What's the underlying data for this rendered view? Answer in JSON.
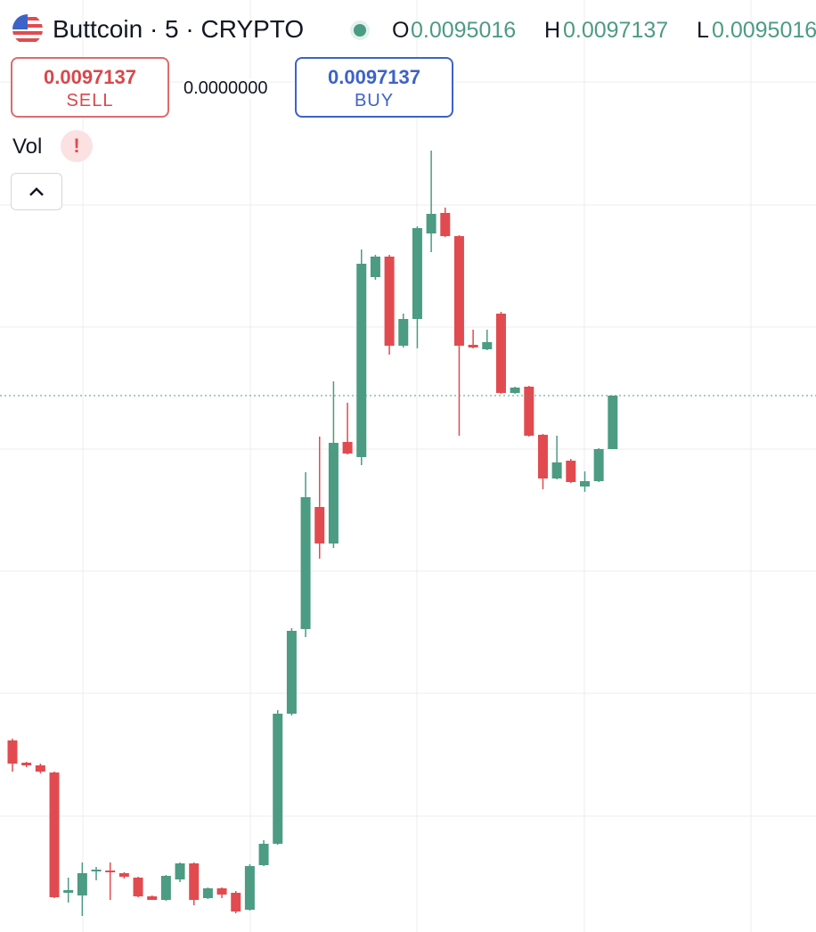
{
  "header": {
    "symbol": "Buttcoin · 5 · CRYPTO",
    "o_label": "O",
    "o_value": 0.0095016,
    "h_label": "H",
    "h_value": 0.0097137,
    "l_label": "L",
    "l_value": 0.0095016
  },
  "trade": {
    "sell_price": 0.0097137,
    "sell_label": "SELL",
    "spread": "0.0000000",
    "buy_price": 0.0097137,
    "buy_label": "BUY"
  },
  "indicator": {
    "name": "Vol",
    "warning": "!"
  },
  "chart_data": {
    "type": "candlestick",
    "ylim": [
      0.0076068,
      0.010753
    ],
    "up_color": "#4c9b83",
    "down_color": "#e14b4f",
    "series": [
      {
        "open": [
          0.0083457,
          0.0082573,
          0.0082467,
          0.0082184,
          0.0077412,
          0.0077306,
          0.007826,
          0.0078295,
          0.0078189,
          0.0078013,
          0.007727,
          0.0077129,
          0.0077942,
          0.0078578,
          0.00772,
          0.0077588,
          0.0077412,
          0.007674,
          0.0078508,
          0.0079356,
          0.0084517,
          0.0087875,
          0.0092718,
          0.0091269,
          0.0095299,
          0.0094698,
          0.0101839,
          0.0102652,
          0.0099117,
          0.0100177,
          0.0103571,
          0.0104384,
          0.0103465,
          0.0099152,
          0.0098975,
          0.0100389,
          0.0097243,
          0.0097491,
          0.0095582,
          0.0093849,
          0.0094556,
          0.0093531,
          0.0093743,
          0.0095016
        ],
        "high": [
          0.0083527,
          0.0082608,
          0.0082537,
          0.0082219,
          0.0078013,
          0.0078614,
          0.0078437,
          0.0078614,
          0.0078225,
          0.0078048,
          0.0077306,
          0.0078119,
          0.0078614,
          0.0078614,
          0.0077624,
          0.0077624,
          0.0077482,
          0.0078543,
          0.0079497,
          0.0084658,
          0.0087911,
          0.0094097,
          0.0095511,
          0.0097703,
          0.0096854,
          0.0102934,
          0.0102722,
          0.0102722,
          0.0100389,
          0.0103854,
          0.0106858,
          0.0104596,
          0.01035,
          0.0099753,
          0.0099753,
          0.010046,
          0.0097491,
          0.0097526,
          0.0095617,
          0.0095546,
          0.0094627,
          0.0094132,
          0.0095051,
          0.0097137
        ],
        "low": [
          0.0082219,
          0.0082396,
          0.0082149,
          0.00772,
          0.0077023,
          0.0076493,
          0.0077907,
          0.0077129,
          0.0077977,
          0.0077235,
          0.0077129,
          0.0077094,
          0.0077836,
          0.0076917,
          0.0077164,
          0.00772,
          0.0076599,
          0.0076705,
          0.0078472,
          0.0079321,
          0.0084446,
          0.0087557,
          0.0090668,
          0.0091092,
          0.0094804,
          0.009438,
          0.0101733,
          0.0098763,
          0.0099046,
          0.0099011,
          0.0102828,
          0.0103429,
          0.0095546,
          0.0099011,
          0.009894,
          0.0097208,
          0.0097208,
          0.0095511,
          0.0093425,
          0.0093814,
          0.0093673,
          0.0093319,
          0.0093708,
          0.0095016
        ],
        "close": [
          0.0082537,
          0.0082467,
          0.0082219,
          0.0077235,
          0.0077518,
          0.0078189,
          0.0078331,
          0.0078225,
          0.0078048,
          0.007727,
          0.0077129,
          0.0078083,
          0.0078578,
          0.0077129,
          0.0077588,
          0.0077341,
          0.0076669,
          0.0078472,
          0.0079356,
          0.0084517,
          0.0087805,
          0.0093107,
          0.0091269,
          0.0095263,
          0.0094839,
          0.0102369,
          0.0102652,
          0.0099117,
          0.0100177,
          0.0103783,
          0.0104348,
          0.0103465,
          0.0099117,
          0.0099046,
          0.0099258,
          0.0097243,
          0.0097455,
          0.0095546,
          0.0093849,
          0.0094486,
          0.0093708,
          0.0093743,
          0.0095016,
          0.0097137
        ]
      }
    ]
  }
}
